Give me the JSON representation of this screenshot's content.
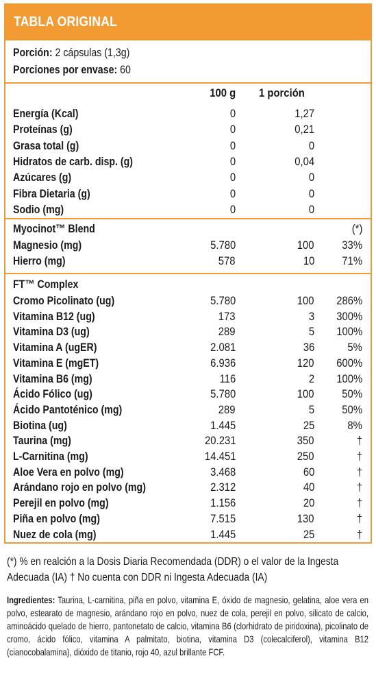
{
  "header": {
    "title": "TABLA ORIGINAL"
  },
  "serving": {
    "portion_label": "Porción:",
    "portion_value": "2 cápsulas (1,3g)",
    "per_container_label": "Porciones por envase:",
    "per_container_value": "60"
  },
  "columns": {
    "per100": "100 g",
    "perPortion": "1 porción"
  },
  "nutrition": [
    {
      "name": "Energía (Kcal)",
      "per100": "0",
      "portion": "1,27",
      "pct": ""
    },
    {
      "name": "Proteínas (g)",
      "per100": "0",
      "portion": "0,21",
      "pct": ""
    },
    {
      "name": "Grasa total (g)",
      "per100": "0",
      "portion": "0",
      "pct": ""
    },
    {
      "name": "Hidratos de carb. disp. (g)",
      "per100": "0",
      "portion": "0,04",
      "pct": ""
    },
    {
      "name": "Azúcares (g)",
      "per100": "0",
      "portion": "0",
      "pct": ""
    },
    {
      "name": "Fibra Dietaria (g)",
      "per100": "0",
      "portion": "0",
      "pct": ""
    },
    {
      "name": "Sodio (mg)",
      "per100": "0",
      "portion": "0",
      "pct": ""
    }
  ],
  "myocinot": {
    "title": "Myocinot™ Blend",
    "pct_header": "(*)",
    "rows": [
      {
        "name": "Magnesio (mg)",
        "per100": "5.780",
        "portion": "100",
        "pct": "33%"
      },
      {
        "name": "Hierro (mg)",
        "per100": "578",
        "portion": "10",
        "pct": "71%"
      }
    ]
  },
  "ft": {
    "title": "FT™ Complex",
    "rows": [
      {
        "name": "Cromo Picolinato (ug)",
        "per100": "5.780",
        "portion": "100",
        "pct": "286%"
      },
      {
        "name": "Vitamina B12 (ug)",
        "per100": "173",
        "portion": "3",
        "pct": "300%"
      },
      {
        "name": "Vitamina D3 (ug)",
        "per100": "289",
        "portion": "5",
        "pct": "100%"
      },
      {
        "name": "Vitamina A (ugER)",
        "per100": "2.081",
        "portion": "36",
        "pct": "5%"
      },
      {
        "name": "Vitamina E (mgET)",
        "per100": "6.936",
        "portion": "120",
        "pct": "600%"
      },
      {
        "name": "Vitamina B6 (mg)",
        "per100": "116",
        "portion": "2",
        "pct": "100%"
      },
      {
        "name": "Ácido Fólico (ug)",
        "per100": "5.780",
        "portion": "100",
        "pct": "50%"
      },
      {
        "name": "Ácido Pantoténico (mg)",
        "per100": "289",
        "portion": "5",
        "pct": "50%"
      },
      {
        "name": "Biotina (ug)",
        "per100": "1.445",
        "portion": "25",
        "pct": "8%"
      },
      {
        "name": "Taurina (mg)",
        "per100": "20.231",
        "portion": "350",
        "pct": "†"
      },
      {
        "name": "L-Carnitina (mg)",
        "per100": "14.451",
        "portion": "250",
        "pct": "†"
      },
      {
        "name": "Aloe Vera en polvo (mg)",
        "per100": "3.468",
        "portion": "60",
        "pct": "†"
      },
      {
        "name": "Arándano rojo en polvo (mg)",
        "per100": "2.312",
        "portion": "40",
        "pct": "†"
      },
      {
        "name": "Perejil en polvo (mg)",
        "per100": "1.156",
        "portion": "20",
        "pct": "†"
      },
      {
        "name": "Piña en polvo (mg)",
        "per100": "7.515",
        "portion": "130",
        "pct": "†"
      },
      {
        "name": "Nuez de cola (mg)",
        "per100": "1.445",
        "portion": "25",
        "pct": "†"
      }
    ]
  },
  "footnote": "(*) % en realción a la Dosis Diaria Recomendada (DDR) o el valor de la Ingesta Adecuada (IA) † No cuenta con DDR ni Ingesta Adecuada (IA)",
  "ingredients": {
    "label": "Ingredientes:",
    "text": " Taurina, L-carnitina, piña en polvo, vitamina E, óxido de magnesio, gelatina, aloe vera en polvo, estearato de magnesio, arándano rojo en polvo, nuez de cola, perejil en polvo, silicato de calcio, aminoácido quelado de hierro, pantonetato de calcio, vitamina B6 (clorhidrato de piridoxina), picolinato de cromo, ácido fólico, vitamina A palmitato, biotina, vitamina D3 (colecalciferol), vitamina B12 (cianocobalamina), dióxido de titanio, rojo 40, azul brillante FCF."
  },
  "colors": {
    "accent": "#f19b32",
    "text": "#1a1a1a"
  }
}
